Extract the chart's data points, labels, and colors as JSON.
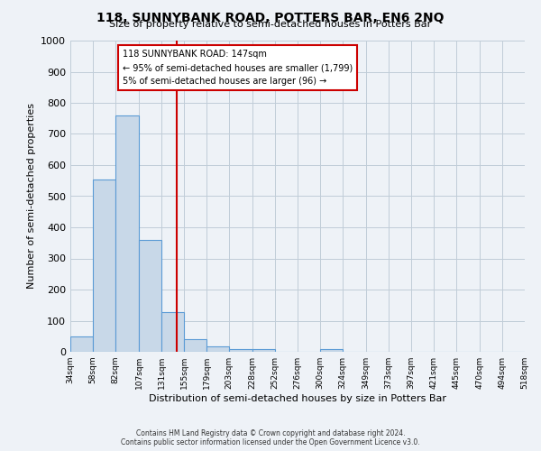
{
  "title": "118, SUNNYBANK ROAD, POTTERS BAR, EN6 2NQ",
  "subtitle": "Size of property relative to semi-detached houses in Potters Bar",
  "xlabel": "Distribution of semi-detached houses by size in Potters Bar",
  "ylabel": "Number of semi-detached properties",
  "bar_edges": [
    34,
    58,
    82,
    107,
    131,
    155,
    179,
    203,
    228,
    252,
    276,
    300,
    324,
    349,
    373,
    397,
    421,
    445,
    470,
    494,
    518
  ],
  "bar_heights": [
    50,
    555,
    758,
    358,
    128,
    40,
    17,
    8,
    8,
    0,
    0,
    8,
    0,
    0,
    0,
    0,
    0,
    0,
    0,
    0
  ],
  "bar_color": "#c8d8e8",
  "bar_edgecolor": "#5b9bd5",
  "property_line_x": 147,
  "property_line_color": "#cc0000",
  "annotation_text": "118 SUNNYBANK ROAD: 147sqm\n← 95% of semi-detached houses are smaller (1,799)\n5% of semi-detached houses are larger (96) →",
  "annotation_box_color": "#ffffff",
  "annotation_box_edgecolor": "#cc0000",
  "ylim": [
    0,
    1000
  ],
  "yticks": [
    0,
    100,
    200,
    300,
    400,
    500,
    600,
    700,
    800,
    900,
    1000
  ],
  "background_color": "#eef2f7",
  "grid_color": "#c0ccd8",
  "footer_line1": "Contains HM Land Registry data © Crown copyright and database right 2024.",
  "footer_line2": "Contains public sector information licensed under the Open Government Licence v3.0."
}
